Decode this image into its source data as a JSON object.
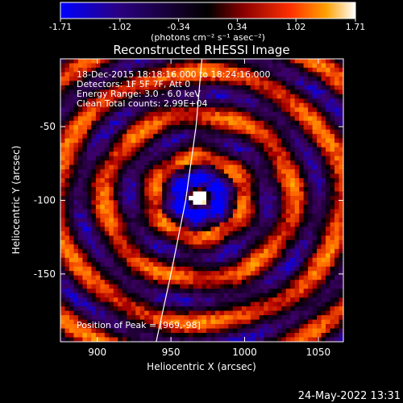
{
  "colorbar": {
    "ticks": [
      "-1.71",
      "-1.02",
      "-0.34",
      "0.34",
      "1.02",
      "1.71"
    ],
    "tick_values": [
      -1.71,
      -1.02,
      -0.34,
      0.34,
      1.02,
      1.71
    ],
    "range": [
      -1.71,
      1.71
    ],
    "unit": "(photons cm⁻² s⁻¹ asec⁻²)"
  },
  "chart_data": {
    "type": "heatmap",
    "title": "Reconstructed RHESSI Image",
    "xlabel": "Heliocentric X (arcsec)",
    "ylabel": "Heliocentric Y (arcsec)",
    "xlim": [
      875,
      1067
    ],
    "ylim": [
      -196,
      -4
    ],
    "x_ticks": [
      900,
      950,
      1000,
      1050
    ],
    "y_ticks": [
      -50,
      -100,
      -150
    ],
    "peak": [
      969,
      -98
    ],
    "colormap": [
      "#0000ff",
      "#3d0066",
      "#000000",
      "#b00000",
      "#ff5a00",
      "#ffb000",
      "#ffffff"
    ],
    "annotations": [
      "18-Dec-2015 18:18:16.000 to 18:24:16.000",
      "Detectors: 1F 5F 7F, Att 0",
      "Energy Range: 3.0 - 6.0 keV",
      "Clean    Total counts: 2.99E+04"
    ],
    "peak_label": "Position of Peak = [969,-98]",
    "limb": [
      [
        971,
        -4
      ],
      [
        967,
        -50
      ],
      [
        960,
        -100
      ],
      [
        950,
        -150
      ],
      [
        940,
        -196
      ]
    ]
  },
  "timestamp": "24-May-2022 13:31"
}
